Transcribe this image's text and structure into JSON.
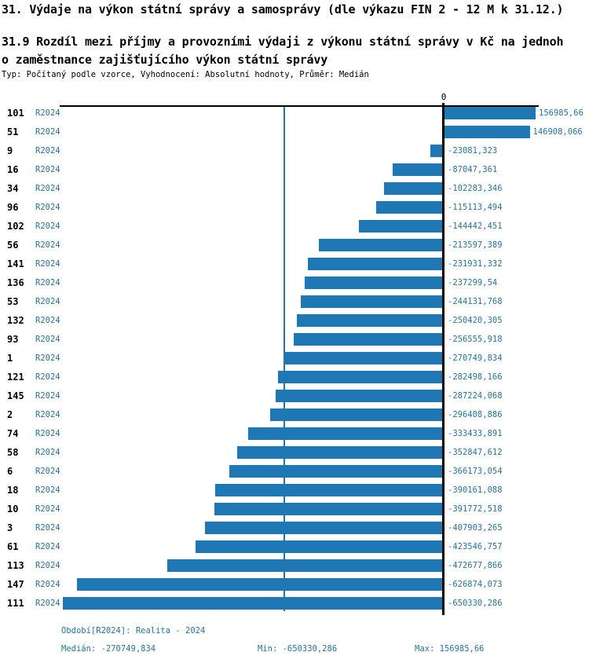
{
  "header": {
    "title": "31. Výdaje na výkon státní správy a samosprávy (dle výkazu FIN 2 - 12 M k 31.12.)",
    "subtitle_line1": "31.9 Rozdíl mezi příjmy a provozními výdaji z výkonu státní správy v Kč na jednoh",
    "subtitle_line2": "o zaměstnance zajišťujícího výkon státní správy",
    "meta": "Typ: Počítaný podle vzorce, Vyhodnocení: Absolutní hodnoty, Průměr: Medián"
  },
  "chart": {
    "zero_label": "0",
    "bar_color": "#1f77b4",
    "text_color": "#1f77b4",
    "axis_color": "#000000",
    "rows": [
      {
        "id": "101",
        "period": "R2024",
        "value_label": "156985,66",
        "value": 156985.66
      },
      {
        "id": "51",
        "period": "R2024",
        "value_label": "146908,066",
        "value": 146908.066
      },
      {
        "id": "9",
        "period": "R2024",
        "value_label": "-23081,323",
        "value": -23081.323
      },
      {
        "id": "16",
        "period": "R2024",
        "value_label": "-87047,361",
        "value": -87047.361
      },
      {
        "id": "34",
        "period": "R2024",
        "value_label": "-102283,346",
        "value": -102283.346
      },
      {
        "id": "96",
        "period": "R2024",
        "value_label": "-115113,494",
        "value": -115113.494
      },
      {
        "id": "102",
        "period": "R2024",
        "value_label": "-144442,451",
        "value": -144442.451
      },
      {
        "id": "56",
        "period": "R2024",
        "value_label": "-213597,389",
        "value": -213597.389
      },
      {
        "id": "141",
        "period": "R2024",
        "value_label": "-231931,332",
        "value": -231931.332
      },
      {
        "id": "136",
        "period": "R2024",
        "value_label": "-237299,54",
        "value": -237299.54
      },
      {
        "id": "53",
        "period": "R2024",
        "value_label": "-244131,768",
        "value": -244131.768
      },
      {
        "id": "132",
        "period": "R2024",
        "value_label": "-250420,305",
        "value": -250420.305
      },
      {
        "id": "93",
        "period": "R2024",
        "value_label": "-256555,918",
        "value": -256555.918
      },
      {
        "id": "1",
        "period": "R2024",
        "value_label": "-270749,834",
        "value": -270749.834
      },
      {
        "id": "121",
        "period": "R2024",
        "value_label": "-282498,166",
        "value": -282498.166
      },
      {
        "id": "145",
        "period": "R2024",
        "value_label": "-287224,068",
        "value": -287224.068
      },
      {
        "id": "2",
        "period": "R2024",
        "value_label": "-296408,886",
        "value": -296408.886
      },
      {
        "id": "74",
        "period": "R2024",
        "value_label": "-333433,891",
        "value": -333433.891
      },
      {
        "id": "58",
        "period": "R2024",
        "value_label": "-352847,612",
        "value": -352847.612
      },
      {
        "id": "6",
        "period": "R2024",
        "value_label": "-366173,054",
        "value": -366173.054
      },
      {
        "id": "18",
        "period": "R2024",
        "value_label": "-390161,088",
        "value": -390161.088
      },
      {
        "id": "10",
        "period": "R2024",
        "value_label": "-391772,518",
        "value": -391772.518
      },
      {
        "id": "3",
        "period": "R2024",
        "value_label": "-407903,265",
        "value": -407903.265
      },
      {
        "id": "61",
        "period": "R2024",
        "value_label": "-423546,757",
        "value": -423546.757
      },
      {
        "id": "113",
        "period": "R2024",
        "value_label": "-472677,866",
        "value": -472677.866
      },
      {
        "id": "147",
        "period": "R2024",
        "value_label": "-626874,073",
        "value": -626874.073
      },
      {
        "id": "111",
        "period": "R2024",
        "value_label": "-650330,286",
        "value": -650330.286
      }
    ]
  },
  "footer": {
    "period": "Období[R2024]: Realita - 2024",
    "median": "Medián: -270749,834",
    "min": "Min: -650330,286",
    "max": "Max: 156985,66"
  },
  "chart_data": {
    "type": "bar",
    "orientation": "horizontal",
    "title": "31.9 Rozdíl mezi příjmy a provozními výdaji z výkonu státní správy v Kč na jednoho zaměstnance zajišťujícího výkon státní správy",
    "categories": [
      "101",
      "51",
      "9",
      "16",
      "34",
      "96",
      "102",
      "56",
      "141",
      "136",
      "53",
      "132",
      "93",
      "1",
      "121",
      "145",
      "2",
      "74",
      "58",
      "6",
      "18",
      "10",
      "3",
      "61",
      "113",
      "147",
      "111"
    ],
    "series": [
      {
        "name": "R2024",
        "values": [
          156985.66,
          146908.066,
          -23081.323,
          -87047.361,
          -102283.346,
          -115113.494,
          -144442.451,
          -213597.389,
          -231931.332,
          -237299.54,
          -244131.768,
          -250420.305,
          -256555.918,
          -270749.834,
          -282498.166,
          -287224.068,
          -296408.886,
          -333433.891,
          -352847.612,
          -366173.054,
          -390161.088,
          -391772.518,
          -407903.265,
          -423546.757,
          -472677.866,
          -626874.073,
          -650330.286
        ]
      }
    ],
    "xlabel": "",
    "ylabel": "",
    "xlim": [
      -660000,
      165000
    ],
    "grid": false,
    "legend_position": "none",
    "reference_lines": {
      "zero": 0,
      "median": -270749.834
    },
    "median": -270749.834,
    "min": -650330.286,
    "max": 156985.66
  }
}
